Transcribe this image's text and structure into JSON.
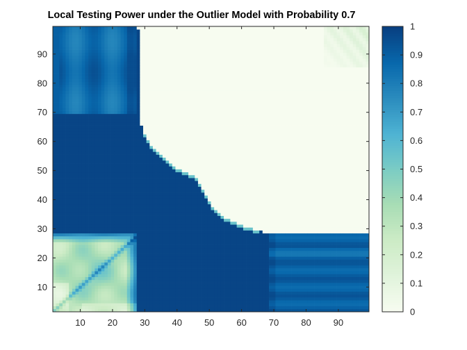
{
  "chart_data": {
    "type": "heatmap",
    "title": "Local Testing Power under the Outlier Model with Probability 0.7",
    "xlabel": "",
    "ylabel": "",
    "xlim": [
      1.5,
      99.5
    ],
    "ylim": [
      1.5,
      99.5
    ],
    "x_ticks": [
      10,
      20,
      30,
      40,
      50,
      60,
      70,
      80,
      90
    ],
    "y_ticks": [
      10,
      20,
      30,
      40,
      50,
      60,
      70,
      80,
      90
    ],
    "grid_size": [
      98,
      98
    ],
    "color_limits": [
      0,
      1
    ],
    "colorbar_ticks": [
      "0",
      "0.1",
      "0.2",
      "0.3",
      "0.4",
      "0.5",
      "0.6",
      "0.7",
      "0.8",
      "0.9",
      "1"
    ],
    "colormap": [
      "#f7fcf0",
      "#e0f3db",
      "#ccebc5",
      "#a8ddb5",
      "#7bccc4",
      "#4eb3d3",
      "#2b8cbe",
      "#0868ac",
      "#084081"
    ],
    "regions": [
      {
        "name": "upper-right",
        "x": [
          28,
          99
        ],
        "y": [
          64,
          99
        ],
        "value": 0.0
      },
      {
        "name": "lower-left",
        "x": [
          2,
          27
        ],
        "y": [
          2,
          28
        ],
        "value": 0.3
      },
      {
        "name": "upper-left",
        "x": [
          2,
          27
        ],
        "y": [
          70,
          99
        ],
        "value": 0.85
      },
      {
        "name": "lower-right",
        "x": [
          69,
          99
        ],
        "y": [
          2,
          28
        ],
        "value": 0.88
      },
      {
        "name": "central-band",
        "value": 0.97
      }
    ],
    "boundary_upper_right": [
      {
        "x": 28,
        "y": 99
      },
      {
        "x": 29,
        "y": 66
      },
      {
        "x": 30,
        "y": 63
      },
      {
        "x": 31,
        "y": 61
      },
      {
        "x": 32,
        "y": 59
      },
      {
        "x": 33,
        "y": 58
      },
      {
        "x": 34,
        "y": 57
      },
      {
        "x": 35,
        "y": 56
      },
      {
        "x": 36,
        "y": 55
      },
      {
        "x": 37,
        "y": 54
      },
      {
        "x": 38,
        "y": 53
      },
      {
        "x": 39,
        "y": 52
      },
      {
        "x": 40,
        "y": 51
      },
      {
        "x": 42,
        "y": 50
      },
      {
        "x": 44,
        "y": 49
      },
      {
        "x": 46,
        "y": 48
      },
      {
        "x": 47,
        "y": 46
      },
      {
        "x": 48,
        "y": 44
      },
      {
        "x": 49,
        "y": 42
      },
      {
        "x": 50,
        "y": 40
      },
      {
        "x": 51,
        "y": 38
      },
      {
        "x": 52,
        "y": 37
      },
      {
        "x": 53,
        "y": 36
      },
      {
        "x": 54,
        "y": 35
      },
      {
        "x": 55,
        "y": 34
      },
      {
        "x": 57,
        "y": 33
      },
      {
        "x": 59,
        "y": 32
      },
      {
        "x": 61,
        "y": 31
      },
      {
        "x": 64,
        "y": 30
      },
      {
        "x": 67,
        "y": 29
      },
      {
        "x": 99,
        "y": 29
      }
    ]
  }
}
